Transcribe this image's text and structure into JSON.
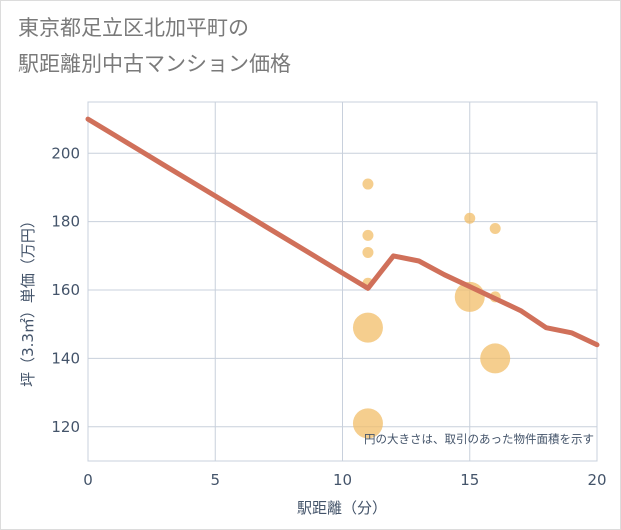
{
  "chart_data": {
    "type": "scatter",
    "title_line1": "東京都足立区北加平町の",
    "title_line2": "駅距離別中古マンション価格",
    "xlabel": "駅距離（分）",
    "ylabel": "坪（3.3㎡）単価（万円）",
    "xlim": [
      0,
      20
    ],
    "ylim": [
      110,
      215
    ],
    "xticks": [
      0,
      5,
      10,
      15,
      20
    ],
    "yticks": [
      120,
      140,
      160,
      180,
      200
    ],
    "grid": true,
    "note": "円の大きさは、取引のあった物件面積を示す",
    "colors": {
      "line": "#d0705a",
      "bubble": "#f2bd68",
      "grid": "#c8d0dc",
      "axis": "#44546a"
    },
    "scatter": [
      {
        "x": 11,
        "y": 191,
        "size": 1
      },
      {
        "x": 11,
        "y": 176,
        "size": 1
      },
      {
        "x": 11,
        "y": 171,
        "size": 1
      },
      {
        "x": 11,
        "y": 162,
        "size": 1
      },
      {
        "x": 11,
        "y": 149,
        "size": 3
      },
      {
        "x": 11,
        "y": 121,
        "size": 3
      },
      {
        "x": 15,
        "y": 181,
        "size": 1
      },
      {
        "x": 15,
        "y": 158,
        "size": 3
      },
      {
        "x": 16,
        "y": 178,
        "size": 1
      },
      {
        "x": 16,
        "y": 158,
        "size": 1
      },
      {
        "x": 16,
        "y": 140,
        "size": 3
      }
    ],
    "series": [
      {
        "name": "trend",
        "x": [
          0,
          1,
          2,
          3,
          4,
          5,
          6,
          7,
          8,
          9,
          10,
          11,
          12,
          13,
          14,
          15,
          16,
          17,
          18,
          19,
          20
        ],
        "values": [
          210,
          205.5,
          201,
          196.5,
          192,
          187.5,
          183,
          178.5,
          174,
          169.5,
          165,
          160.5,
          170,
          168.5,
          164.5,
          161,
          157.5,
          154,
          149,
          147.5,
          144
        ]
      }
    ]
  }
}
